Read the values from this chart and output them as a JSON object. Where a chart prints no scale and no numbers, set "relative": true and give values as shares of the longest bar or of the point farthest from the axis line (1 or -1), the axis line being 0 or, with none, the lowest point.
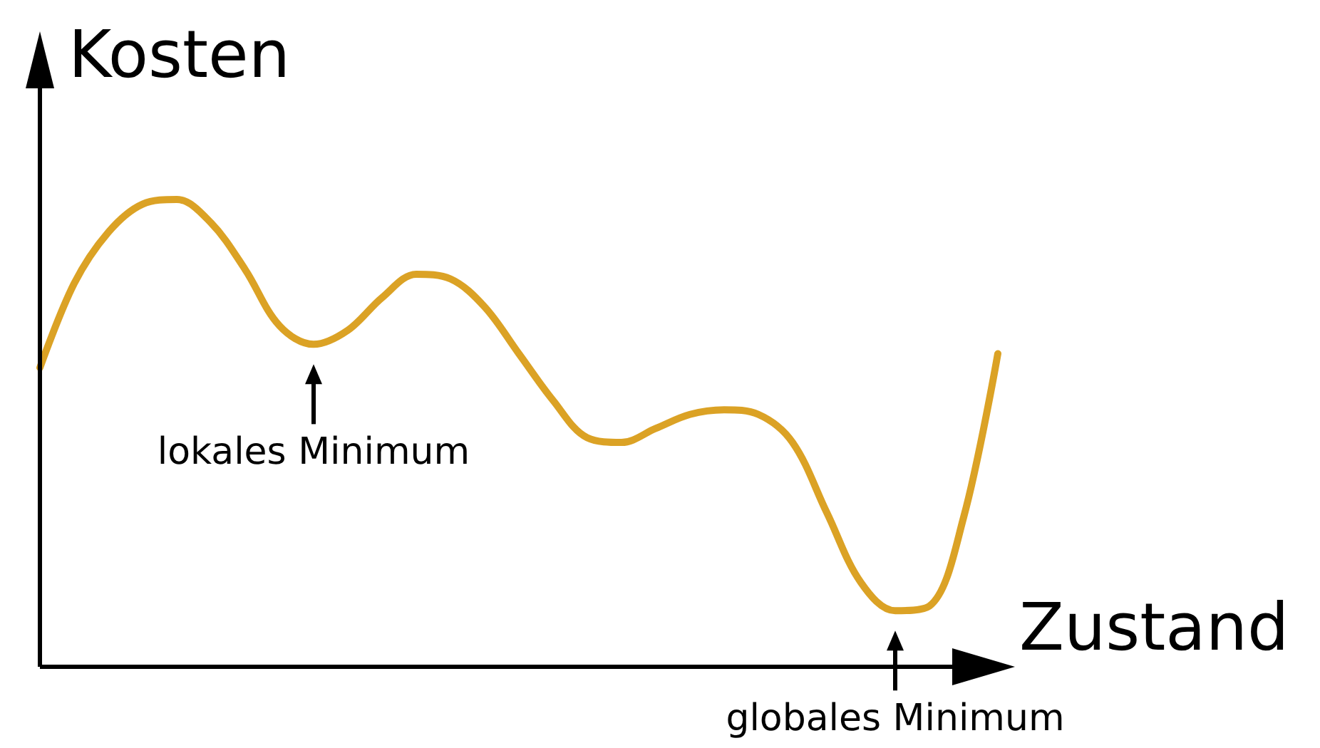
{
  "chart_data": {
    "type": "line",
    "relative": true,
    "xlabel": "Zustand",
    "ylabel": "Kosten",
    "marker": "none",
    "color": "#dba225",
    "categories": [
      null,
      null,
      null,
      null,
      null,
      null,
      null,
      null,
      null,
      null,
      null,
      null,
      null,
      null,
      null,
      null,
      null,
      null,
      null,
      null,
      null,
      null,
      null,
      null,
      null,
      null,
      null,
      null,
      null
    ],
    "values": [
      0.64,
      0.82,
      0.93,
      0.99,
      1,
      0.95,
      0.85,
      0.73,
      0.69,
      0.72,
      0.79,
      0.84,
      0.83,
      0.77,
      0.67,
      0.57,
      0.49,
      0.48,
      0.51,
      0.54,
      0.55,
      0.54,
      0.48,
      0.33,
      0.18,
      0.12,
      0.13,
      0.32,
      0.67
    ],
    "annotations": [
      {
        "text": "lokales Minimum",
        "y": 0.69
      },
      {
        "text": "globales Minimum",
        "y": 0.12
      }
    ]
  }
}
